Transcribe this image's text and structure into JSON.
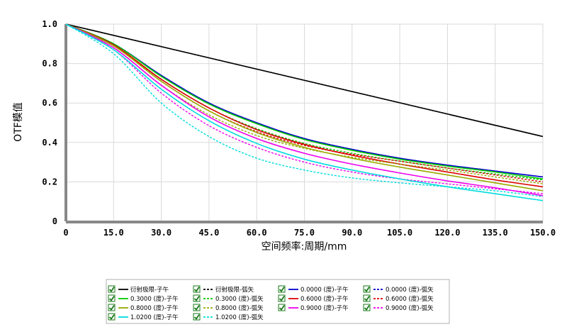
{
  "chart_data": {
    "type": "line",
    "xlabel": "空间频率:周期/mm",
    "ylabel": "OTF模值",
    "xlim": [
      0,
      150
    ],
    "ylim": [
      0,
      1
    ],
    "x_ticks": [
      "0",
      "15.0",
      "30.0",
      "45.0",
      "60.0",
      "75.0",
      "90.0",
      "105.0",
      "120.0",
      "135.0",
      "150.0"
    ],
    "y_ticks": [
      "0",
      "0.2",
      "0.4",
      "0.6",
      "0.8",
      "1.0"
    ],
    "grid": true,
    "legend_position": "bottom",
    "x": [
      0,
      15,
      30,
      45,
      60,
      75,
      90,
      105,
      120,
      135,
      150
    ],
    "series": [
      {
        "name": "衍射极限-子午",
        "color": "#000000",
        "dash": false,
        "values": [
          1.0,
          0.94,
          0.88,
          0.82,
          0.76,
          0.7,
          0.64,
          0.59,
          0.53,
          0.48,
          0.43
        ]
      },
      {
        "name": "衍射极限-弧矢",
        "color": "#000000",
        "dash": true,
        "values": [
          1.0,
          0.94,
          0.88,
          0.82,
          0.76,
          0.7,
          0.64,
          0.59,
          0.53,
          0.48,
          0.43
        ]
      },
      {
        "name": "0.0000 (度)-子午",
        "color": "#0000cc",
        "dash": false,
        "values": [
          1.0,
          0.9,
          0.74,
          0.6,
          0.5,
          0.42,
          0.365,
          0.32,
          0.285,
          0.255,
          0.225
        ]
      },
      {
        "name": "0.0000 (度)-弧矢",
        "color": "#0000cc",
        "dash": true,
        "values": [
          1.0,
          0.9,
          0.74,
          0.6,
          0.5,
          0.42,
          0.365,
          0.32,
          0.285,
          0.255,
          0.225
        ]
      },
      {
        "name": "0.3000 (度)-子午",
        "color": "#00cc00",
        "dash": false,
        "values": [
          1.0,
          0.9,
          0.735,
          0.595,
          0.495,
          0.415,
          0.36,
          0.315,
          0.28,
          0.25,
          0.215
        ]
      },
      {
        "name": "0.3000 (度)-弧矢",
        "color": "#00cc00",
        "dash": true,
        "values": [
          1.0,
          0.89,
          0.72,
          0.575,
          0.47,
          0.395,
          0.345,
          0.305,
          0.27,
          0.24,
          0.21
        ]
      },
      {
        "name": "0.6000 (度)-子午",
        "color": "#dd0000",
        "dash": false,
        "values": [
          1.0,
          0.895,
          0.72,
          0.575,
          0.465,
          0.39,
          0.335,
          0.29,
          0.25,
          0.21,
          0.175
        ]
      },
      {
        "name": "0.6000 (度)-弧矢",
        "color": "#dd0000",
        "dash": true,
        "values": [
          1.0,
          0.89,
          0.71,
          0.56,
          0.455,
          0.385,
          0.34,
          0.305,
          0.27,
          0.235,
          0.2
        ]
      },
      {
        "name": "0.8000 (度)-子午",
        "color": "#99aa00",
        "dash": false,
        "values": [
          1.0,
          0.89,
          0.71,
          0.56,
          0.45,
          0.375,
          0.32,
          0.275,
          0.235,
          0.195,
          0.155
        ]
      },
      {
        "name": "0.8000 (度)-弧矢",
        "color": "#99aa00",
        "dash": true,
        "values": [
          1.0,
          0.88,
          0.69,
          0.54,
          0.435,
          0.37,
          0.325,
          0.29,
          0.26,
          0.225,
          0.19
        ]
      },
      {
        "name": "0.9000 (度)-子午",
        "color": "#ee00ee",
        "dash": false,
        "values": [
          1.0,
          0.88,
          0.69,
          0.53,
          0.42,
          0.345,
          0.29,
          0.245,
          0.205,
          0.17,
          0.13
        ]
      },
      {
        "name": "0.9000 (度)-弧矢",
        "color": "#ee00ee",
        "dash": true,
        "values": [
          1.0,
          0.87,
          0.65,
          0.485,
          0.375,
          0.3,
          0.25,
          0.215,
          0.19,
          0.165,
          0.14
        ]
      },
      {
        "name": "1.0200 (度)-子午",
        "color": "#00dddd",
        "dash": false,
        "values": [
          1.0,
          0.87,
          0.67,
          0.51,
          0.395,
          0.315,
          0.26,
          0.215,
          0.175,
          0.14,
          0.105
        ]
      },
      {
        "name": "1.0200 (度)-弧矢",
        "color": "#00dddd",
        "dash": true,
        "values": [
          1.0,
          0.85,
          0.6,
          0.43,
          0.32,
          0.26,
          0.22,
          0.195,
          0.175,
          0.155,
          0.125
        ]
      }
    ]
  }
}
